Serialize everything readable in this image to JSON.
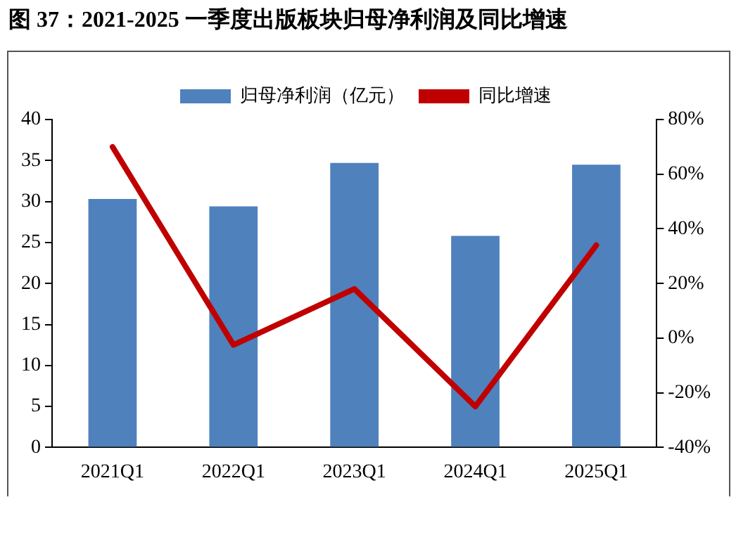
{
  "chart_data": {
    "type": "bar",
    "title": "图 37：2021-2025 一季度出版板块归母净利润及同比增速",
    "categories": [
      "2021Q1",
      "2022Q1",
      "2023Q1",
      "2024Q1",
      "2025Q1"
    ],
    "series": [
      {
        "name": "归母净利润（亿元）",
        "color": "#4f81bd",
        "values": [
          30.3,
          29.4,
          34.7,
          25.8,
          34.5
        ]
      },
      {
        "name": "同比增速",
        "type": "line",
        "axis": "y2",
        "color": "#c00000",
        "values": [
          70,
          -2.5,
          18,
          -25,
          34
        ]
      }
    ],
    "ylim": [
      0,
      40
    ],
    "yticks": [
      0,
      5,
      10,
      15,
      20,
      25,
      30,
      35,
      40
    ],
    "y2lim": [
      -40,
      80
    ],
    "y2ticks": [
      {
        "value": -40,
        "label": "-40%"
      },
      {
        "value": -20,
        "label": "-20%"
      },
      {
        "value": 0,
        "label": "0%"
      },
      {
        "value": 20,
        "label": "20%"
      },
      {
        "value": 40,
        "label": "40%"
      },
      {
        "value": 60,
        "label": "60%"
      },
      {
        "value": 80,
        "label": "80%"
      }
    ],
    "legend": "top",
    "grid": false,
    "marker": "none"
  }
}
